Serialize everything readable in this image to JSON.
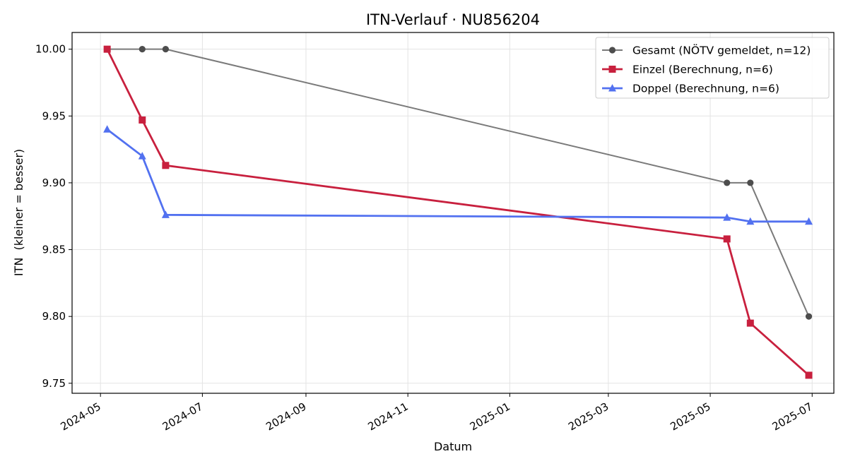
{
  "chart_data": {
    "type": "line",
    "title": "ITN-Verlauf · NU856204",
    "xlabel": "Datum",
    "ylabel": "ITN  (kleiner = besser)",
    "x_axis_type": "date",
    "xlim": [
      "2024-04-14",
      "2025-07-14"
    ],
    "ylim": [
      9.7425,
      10.0125
    ],
    "x_ticks": [
      "2024-05-01",
      "2024-07-01",
      "2024-09-01",
      "2024-11-01",
      "2025-01-01",
      "2025-03-01",
      "2025-05-01",
      "2025-07-01"
    ],
    "x_tick_labels": [
      "2024-05",
      "2024-07",
      "2024-09",
      "2024-11",
      "2025-01",
      "2025-03",
      "2025-05",
      "2025-07"
    ],
    "y_ticks": [
      9.75,
      9.8,
      9.85,
      9.9,
      9.95,
      10.0
    ],
    "y_tick_labels": [
      "9.75",
      "9.80",
      "9.85",
      "9.90",
      "9.95",
      "10.00"
    ],
    "grid": true,
    "legend_position": "top-right",
    "series": [
      {
        "name": "Gesamt (NÖTV gemeldet, n=12)",
        "color": "#4d4d4d",
        "marker": "circle",
        "points": [
          {
            "x": "2024-05-05",
            "y": 10.0
          },
          {
            "x": "2024-05-26",
            "y": 10.0
          },
          {
            "x": "2024-06-09",
            "y": 10.0
          },
          {
            "x": "2025-05-11",
            "y": 9.9
          },
          {
            "x": "2025-05-25",
            "y": 9.9
          },
          {
            "x": "2025-06-29",
            "y": 9.8
          }
        ]
      },
      {
        "name": "Einzel (Berechnung, n=6)",
        "color": "#c8203e",
        "marker": "square",
        "points": [
          {
            "x": "2024-05-05",
            "y": 10.0
          },
          {
            "x": "2024-05-26",
            "y": 9.947
          },
          {
            "x": "2024-06-09",
            "y": 9.913
          },
          {
            "x": "2025-05-11",
            "y": 9.858
          },
          {
            "x": "2025-05-25",
            "y": 9.795
          },
          {
            "x": "2025-06-29",
            "y": 9.756
          }
        ]
      },
      {
        "name": "Doppel (Berechnung, n=6)",
        "color": "#5271f0",
        "marker": "triangle",
        "points": [
          {
            "x": "2024-05-05",
            "y": 9.94
          },
          {
            "x": "2024-05-26",
            "y": 9.92
          },
          {
            "x": "2024-06-09",
            "y": 9.876
          },
          {
            "x": "2025-05-11",
            "y": 9.874
          },
          {
            "x": "2025-05-25",
            "y": 9.871
          },
          {
            "x": "2025-06-29",
            "y": 9.871
          }
        ]
      }
    ]
  }
}
